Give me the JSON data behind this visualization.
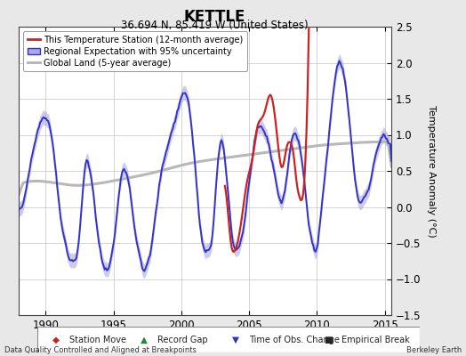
{
  "title": "KETTLE",
  "subtitle": "36.694 N, 85.419 W (United States)",
  "ylabel": "Temperature Anomaly (°C)",
  "xlim": [
    1988.0,
    2015.5
  ],
  "ylim": [
    -1.5,
    2.5
  ],
  "yticks": [
    -1.5,
    -1.0,
    -0.5,
    0.0,
    0.5,
    1.0,
    1.5,
    2.0,
    2.5
  ],
  "xticks": [
    1990,
    1995,
    2000,
    2005,
    2010,
    2015
  ],
  "footer_left": "Data Quality Controlled and Aligned at Breakpoints",
  "footer_right": "Berkeley Earth",
  "bg_color": "#e8e8e8",
  "plot_bg_color": "#ffffff",
  "regional_color": "#3333cc",
  "regional_fill_color": "#aaaadd",
  "station_color": "#cc2222",
  "global_color": "#b8b8b8",
  "global_linewidth": 2.2,
  "regional_linewidth": 1.4,
  "station_linewidth": 1.6
}
